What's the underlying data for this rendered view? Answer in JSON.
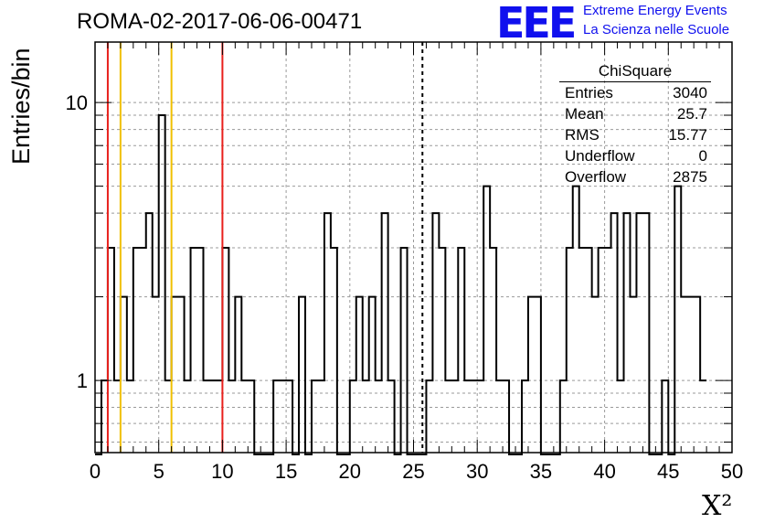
{
  "header": {
    "run_title": "ROMA-02-2017-06-06-00471",
    "logo_mark": "EEE",
    "logo_line1": "Extreme Energy Events",
    "logo_line2": "La Scienza nelle Scuole"
  },
  "stats_box": {
    "title": "ChiSquare",
    "rows": [
      {
        "label": "Entries",
        "value": "3040"
      },
      {
        "label": "Mean",
        "value": "25.7"
      },
      {
        "label": "RMS",
        "value": "15.77"
      },
      {
        "label": "Underflow",
        "value": "0"
      },
      {
        "label": "Overflow",
        "value": "2875"
      }
    ]
  },
  "chart_data": {
    "type": "histogram",
    "title": "ROMA-02-2017-06-06-00471",
    "xlabel": "X²",
    "ylabel": "Entries/bin",
    "xlim": [
      0,
      50
    ],
    "ylim": [
      0.55,
      16.5
    ],
    "yscale": "log",
    "grid": true,
    "bin_width": 0.5,
    "x_ticks": [
      0,
      5,
      10,
      15,
      20,
      25,
      30,
      35,
      40,
      45,
      50
    ],
    "y_ticks": [
      1,
      10
    ],
    "counts": [
      0,
      1,
      3,
      1,
      2,
      1,
      3,
      3,
      4,
      2,
      9,
      1,
      2,
      2,
      1,
      3,
      3,
      1,
      1,
      1,
      3,
      1,
      2,
      1,
      1,
      0,
      0,
      0,
      1,
      1,
      1,
      0,
      2,
      0,
      1,
      1,
      4,
      3,
      0,
      0,
      1,
      2,
      1,
      2,
      1,
      4,
      1,
      0,
      3,
      0,
      0,
      0,
      1,
      4,
      3,
      1,
      1,
      3,
      1,
      1,
      1,
      5,
      3,
      1,
      1,
      0,
      0,
      1,
      2,
      2,
      0,
      0,
      0,
      1,
      3,
      5,
      3,
      3,
      2,
      3,
      3,
      4,
      1,
      4,
      2,
      4,
      4,
      0,
      0,
      1,
      0,
      5,
      2,
      2,
      2,
      1
    ],
    "vertical_lines": [
      {
        "x": 1,
        "color": "#e8201c",
        "style": "solid"
      },
      {
        "x": 10,
        "color": "#e8201c",
        "style": "solid"
      },
      {
        "x": 2,
        "color": "#f0c000",
        "style": "solid"
      },
      {
        "x": 6,
        "color": "#f0c000",
        "style": "solid"
      },
      {
        "x": 25.7,
        "color": "#000000",
        "style": "dashed"
      }
    ]
  }
}
